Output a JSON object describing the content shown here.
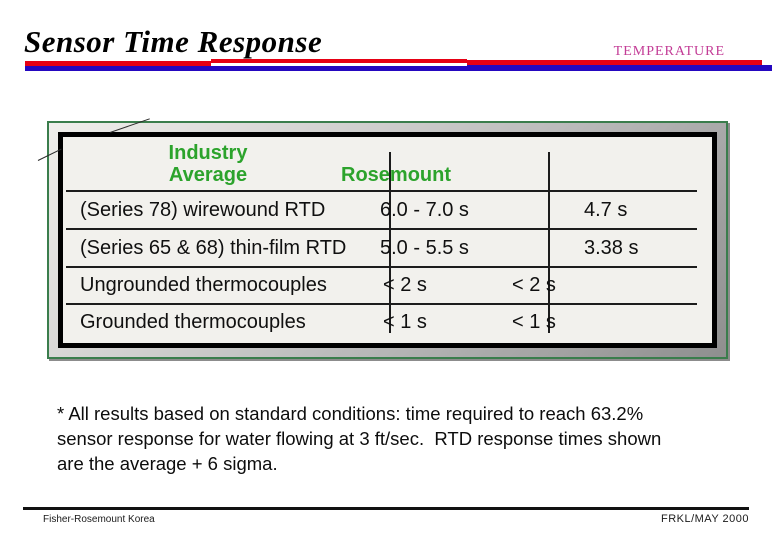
{
  "slide": {
    "title": "Sensor Time Response",
    "category_label": "TEMPERATURE"
  },
  "table": {
    "header": {
      "industry_line1": "Industry",
      "industry_line2": "Average",
      "rosemount": "Rosemount"
    },
    "rows": [
      {
        "label": "(Series 78) wirewound RTD",
        "industry_avg": "6.0 - 7.0 s",
        "rosemount": "4.7 s"
      },
      {
        "label": "(Series 65 & 68) thin-film RTD",
        "industry_avg": "5.0 - 5.5 s",
        "rosemount": "3.38 s"
      },
      {
        "label": "Ungrounded thermocouples",
        "industry_avg": "< 2 s",
        "rosemount": "< 2 s"
      },
      {
        "label": "Grounded thermocouples",
        "industry_avg": "< 1 s",
        "rosemount": "< 1 s"
      }
    ]
  },
  "footnote": {
    "line1": "* All results based on standard conditions: time required to reach 63.2%",
    "line2": "sensor response for water flowing at 3 ft/sec.  RTD response times shown",
    "line3": "are the average + 6 sigma."
  },
  "footer": {
    "left": "Fisher-Rosemount Korea",
    "right": "FRKL/MAY 2000"
  },
  "colors": {
    "accent_red": "#e60014",
    "accent_blue": "#2408c0",
    "green_text": "#2ca32c",
    "green_border": "#3a7d4c",
    "magenta": "#c33c96"
  }
}
